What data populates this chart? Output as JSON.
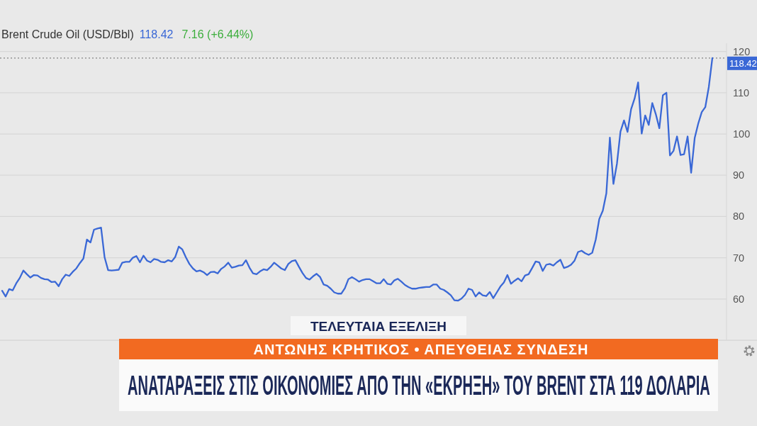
{
  "chart_data": {
    "type": "line",
    "title": "Brent Crude Oil (USD/Bbl)",
    "annotations": [
      "118.42",
      "7.16 (+6.44%)",
      "ΤΕΛΕΥΤΑΙΑ ΕΞΕΛΙΞΗ",
      "ΑΝΤΩΝΗΣ ΚΡΗΤΙΚΟΣ • ΑΠΕΥΘΕΙΑΣ ΣΥΝΔΕΣΗ",
      "ΑΝΑΤΑΡΑΞΕΙΣ ΣΤΙΣ ΟΙΚΟΝΟΜΙΕΣ ΑΠΟ ΤΗΝ «ΕΚΡΗΞΗ» ΤΟΥ BRENT ΣΤΑ 119 ΔΟΛΑΡΙΑ"
    ],
    "categories": [
      null,
      null,
      null,
      null,
      null,
      null,
      null,
      null,
      null,
      null,
      null,
      null,
      null,
      null,
      null,
      null,
      null,
      null,
      null,
      null,
      null,
      null,
      null,
      null,
      null,
      null,
      null,
      null,
      null,
      null,
      null,
      null,
      null,
      null,
      null,
      null,
      null,
      null,
      null,
      null,
      null,
      null,
      null,
      null,
      null,
      null,
      null,
      null,
      null,
      null,
      null,
      null,
      null,
      null,
      null,
      null,
      null,
      null,
      null,
      null,
      null,
      null,
      null,
      null,
      null,
      null,
      null,
      null,
      null,
      null,
      null,
      null,
      null,
      null,
      null,
      null,
      null,
      null,
      null,
      null,
      null,
      null,
      null,
      null,
      null,
      null,
      null,
      null,
      null,
      null,
      null,
      null,
      null,
      null,
      null,
      null,
      null,
      null,
      null,
      null,
      null,
      null,
      null,
      null,
      null,
      null,
      null,
      null,
      null,
      null,
      null,
      null,
      null,
      null,
      null,
      null,
      null,
      null,
      null,
      null,
      null,
      null,
      null,
      null,
      null,
      null,
      null,
      null,
      null,
      null,
      null,
      null,
      null,
      null,
      null,
      null,
      null,
      null,
      null,
      null,
      null,
      null,
      null,
      null,
      null,
      null,
      null,
      null,
      null,
      null,
      null,
      null,
      null,
      null,
      null,
      null,
      null,
      null,
      null,
      null,
      null,
      null,
      null,
      null,
      null,
      null,
      null,
      null,
      null,
      null,
      null,
      null,
      null,
      null,
      null,
      null,
      null,
      null,
      null,
      null,
      null,
      null,
      null,
      null,
      null,
      null,
      null,
      null,
      null,
      null,
      null,
      null,
      null,
      null,
      null,
      null,
      null,
      null,
      null,
      null,
      null,
      null
    ],
    "values": [
      62.0,
      60.6,
      62.4,
      62.1,
      63.8,
      65.1,
      66.9,
      66.0,
      65.2,
      65.8,
      65.7,
      65.1,
      64.8,
      64.7,
      64.1,
      64.2,
      63.1,
      64.8,
      65.9,
      65.6,
      66.6,
      67.4,
      68.7,
      69.8,
      74.4,
      73.7,
      76.8,
      77.1,
      77.3,
      70.1,
      67.0,
      66.9,
      67.0,
      67.1,
      68.8,
      69.0,
      69.0,
      70.0,
      70.4,
      68.9,
      70.5,
      69.3,
      68.9,
      69.7,
      69.5,
      69.0,
      68.9,
      69.4,
      69.1,
      70.2,
      72.7,
      72.0,
      70.1,
      68.5,
      67.4,
      66.7,
      66.9,
      66.5,
      65.8,
      66.5,
      66.6,
      66.2,
      67.3,
      67.9,
      68.8,
      67.6,
      67.8,
      68.1,
      68.2,
      69.4,
      67.6,
      66.2,
      66.0,
      66.7,
      67.2,
      67.0,
      67.8,
      68.8,
      68.1,
      67.4,
      67.0,
      68.5,
      69.2,
      69.4,
      67.8,
      66.3,
      65.1,
      64.7,
      65.5,
      66.1,
      65.3,
      63.5,
      63.2,
      62.5,
      61.6,
      61.3,
      61.3,
      62.6,
      64.8,
      65.3,
      64.8,
      64.2,
      64.6,
      64.8,
      64.8,
      64.3,
      63.8,
      63.8,
      64.8,
      63.7,
      63.5,
      64.5,
      64.9,
      64.2,
      63.4,
      62.9,
      62.5,
      62.5,
      62.7,
      62.8,
      62.9,
      62.9,
      63.5,
      63.5,
      62.5,
      62.2,
      61.6,
      60.9,
      59.7,
      59.6,
      60.1,
      61.0,
      62.5,
      62.2,
      60.6,
      61.6,
      60.9,
      60.7,
      61.7,
      60.2,
      61.6,
      63.0,
      64.0,
      65.8,
      63.7,
      64.4,
      65.0,
      64.3,
      65.7,
      66.0,
      67.5,
      69.1,
      68.9,
      66.8,
      68.3,
      68.5,
      68.1,
      68.9,
      69.5,
      67.5,
      67.8,
      68.3,
      69.3,
      71.4,
      71.7,
      71.1,
      70.7,
      71.2,
      74.4,
      79.4,
      81.4,
      85.6,
      99.1,
      87.9,
      92.8,
      100.6,
      103.3,
      100.5,
      106.0,
      108.6,
      112.5,
      100.1,
      104.5,
      102.2,
      107.5,
      104.8,
      101.4,
      109.4,
      110.0,
      94.8,
      95.9,
      99.4,
      94.9,
      95.1,
      99.4,
      90.6,
      99.0,
      102.5,
      105.3,
      106.5,
      111.4,
      118.42
    ],
    "color": "#3a68d6",
    "ylim": [
      50,
      122
    ],
    "yticks": [
      60,
      70,
      80,
      90,
      100,
      110,
      120
    ],
    "grid": "y",
    "ref_lines": [
      {
        "axis": "y",
        "value": 118.42,
        "label": "118.42",
        "color": "#a0a0a0",
        "line_style": "dotted"
      }
    ]
  }
}
